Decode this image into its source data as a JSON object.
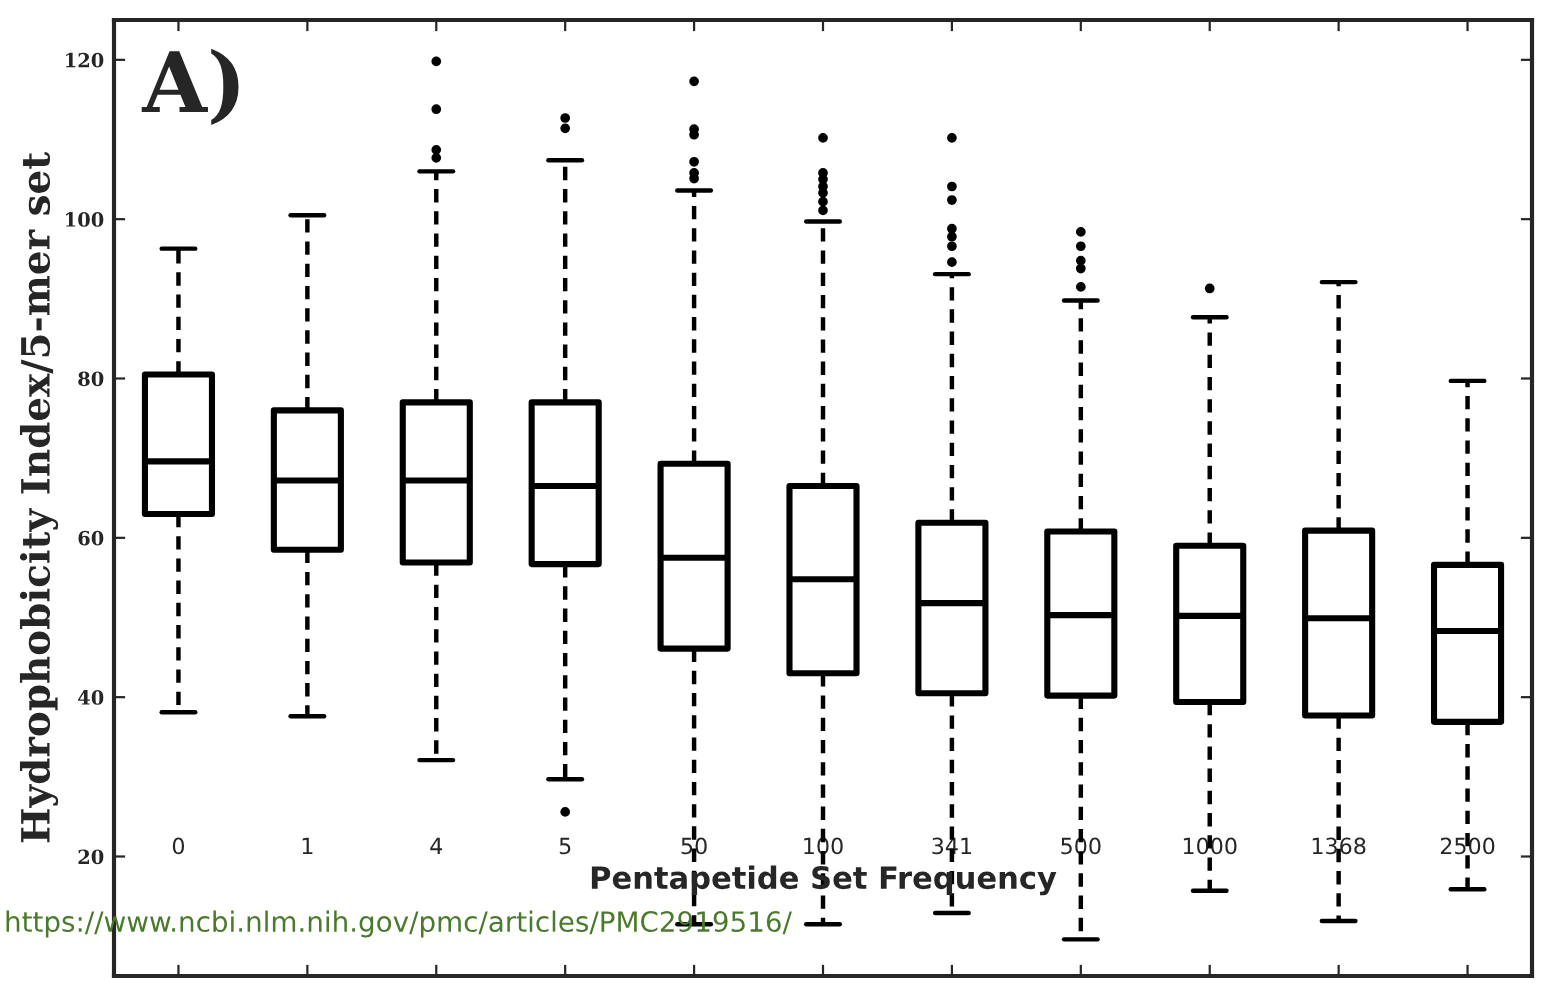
{
  "chart_data": {
    "type": "box",
    "categories": [
      "0",
      "1",
      "4",
      "5",
      "50",
      "100",
      "341",
      "500",
      "1000",
      "1368",
      "2500"
    ],
    "boxes": [
      {
        "low": 38.1,
        "q1": 63,
        "median": 69.6,
        "q3": 80.5,
        "high": 96.3
      },
      {
        "low": 37.6,
        "q1": 58.5,
        "median": 67.2,
        "q3": 76,
        "high": 100.5
      },
      {
        "low": 32.1,
        "q1": 56.9,
        "median": 67.2,
        "q3": 77,
        "high": 106,
        "outliers": [
          119.8,
          113.8,
          108.7,
          107.7
        ]
      },
      {
        "low": 29.7,
        "q1": 56.7,
        "median": 66.5,
        "q3": 77,
        "high": 107.4,
        "outliers": [
          112.7,
          111.4,
          25.6
        ]
      },
      {
        "low": 11.5,
        "q1": 46.1,
        "median": 57.5,
        "q3": 69.3,
        "high": 103.6,
        "outliers": [
          117.3,
          111.3,
          110.6,
          107.2,
          105.8,
          105.1
        ]
      },
      {
        "low": 11.5,
        "q1": 43,
        "median": 54.8,
        "q3": 66.5,
        "high": 99.7,
        "outliers": [
          110.2,
          105.8,
          105,
          104.1,
          103.3,
          102.2,
          101.1
        ]
      },
      {
        "low": 12.9,
        "q1": 40.5,
        "median": 51.8,
        "q3": 61.9,
        "high": 93.1,
        "outliers": [
          110.2,
          104.1,
          102.4,
          98.8,
          97.8,
          96.6,
          94.6
        ]
      },
      {
        "low": 9.6,
        "q1": 40.2,
        "median": 50.3,
        "q3": 60.8,
        "high": 89.8,
        "outliers": [
          98.4,
          96.6,
          94.8,
          93.8,
          91.5
        ]
      },
      {
        "low": 15.7,
        "q1": 39.4,
        "median": 50.2,
        "q3": 59,
        "high": 87.7,
        "outliers": [
          91.3
        ]
      },
      {
        "low": 11.9,
        "q1": 37.7,
        "median": 49.9,
        "q3": 60.9,
        "high": 92.1
      },
      {
        "low": 15.9,
        "q1": 36.9,
        "median": 48.3,
        "q3": 56.6,
        "high": 79.7
      }
    ],
    "ylim": [
      5,
      125
    ],
    "yticks": [
      20,
      40,
      60,
      80,
      100,
      120
    ],
    "xlabel": "Pentapetide Set Frequency",
    "ylabel": "Hydrophobicity Index/5-mer set",
    "annotations": [
      "A)",
      "https://www.ncbi.nlm.nih.gov/pmc/articles/PMC2919516/"
    ],
    "grid": false,
    "legend": false
  }
}
